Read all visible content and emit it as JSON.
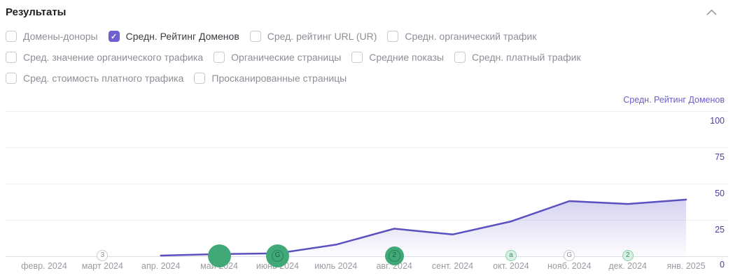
{
  "header": {
    "title": "Результаты",
    "collapse_icon": "chevron-up"
  },
  "filters": {
    "rows": [
      [
        {
          "label": "Домены-доноры",
          "checked": false
        },
        {
          "label": "Средн. Рейтинг Доменов",
          "checked": true
        },
        {
          "label": "Сред. рейтинг URL (UR)",
          "checked": false
        },
        {
          "label": "Средн. органический трафик",
          "checked": false
        }
      ],
      [
        {
          "label": "Сред. значение органического трафика",
          "checked": false
        },
        {
          "label": "Органические страницы",
          "checked": false
        },
        {
          "label": "Средние показы",
          "checked": false
        },
        {
          "label": "Средн. платный трафик",
          "checked": false
        }
      ],
      [
        {
          "label": "Сред. стоимость платного трафика",
          "checked": false
        },
        {
          "label": "Просканированные страницы",
          "checked": false
        }
      ]
    ]
  },
  "chart_data": {
    "type": "area",
    "title": "Средн. Рейтинг Доменов",
    "legend": {
      "label": "Средн. Рейтинг Доменов",
      "position": "top-right"
    },
    "x": [
      "февр. 2024",
      "март 2024",
      "апр. 2024",
      "май 2024",
      "июнь 2024",
      "июль 2024",
      "авг. 2024",
      "сент. 2024",
      "окт. 2024",
      "нояб. 2024",
      "дек. 2024",
      "янв. 2025"
    ],
    "series": [
      {
        "name": "Средн. Рейтинг Доменов",
        "values": [
          null,
          null,
          0.5,
          1.5,
          2,
          8,
          19,
          15,
          24,
          38,
          36,
          39
        ]
      }
    ],
    "ylim": [
      0,
      100
    ],
    "yticks": [
      100,
      75,
      50,
      25,
      0
    ],
    "grid": true,
    "colors": {
      "line": "#5a50c0",
      "fill": "#6c60cc",
      "tick_labels": "#4b3fa3",
      "accent": "#6c60cc"
    },
    "axis_markers": [
      {
        "x": "март 2024",
        "label": "3",
        "style": "outline-gray",
        "size": "small"
      },
      {
        "x": "май 2024",
        "label": "",
        "style": "solid-green",
        "size": "large"
      },
      {
        "x": "июнь 2024",
        "label": "G",
        "style": "solid-green",
        "size": "large"
      },
      {
        "x": "авг. 2024",
        "label": "2",
        "style": "solid-green",
        "size": "medium"
      },
      {
        "x": "окт. 2024",
        "label": "a",
        "style": "pale-green",
        "size": "small"
      },
      {
        "x": "нояб. 2024",
        "label": "G",
        "style": "outline-gray",
        "size": "small"
      },
      {
        "x": "дек. 2024",
        "label": "2",
        "style": "pale-green",
        "size": "small"
      }
    ]
  }
}
